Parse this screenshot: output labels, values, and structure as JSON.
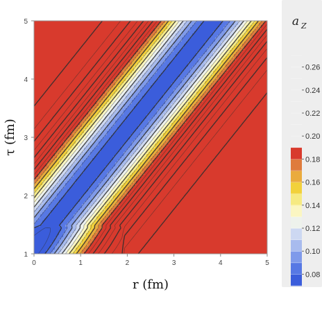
{
  "chart_data": {
    "type": "heatmap",
    "subtype": "filled-contour",
    "xlabel": "r (fm)",
    "ylabel": "τ (fm)",
    "xlim": [
      0,
      5
    ],
    "ylim": [
      1,
      5
    ],
    "xticks": [
      "0",
      "1",
      "2",
      "3",
      "4",
      "5"
    ],
    "yticks": [
      "1",
      "2",
      "3",
      "4",
      "5"
    ],
    "colorbar": {
      "title_main": "a",
      "title_sub": "Z",
      "levels": [
        0.07,
        0.08,
        0.09,
        0.1,
        0.11,
        0.12,
        0.13,
        0.14,
        0.15,
        0.16,
        0.17,
        0.18,
        0.19,
        0.2,
        0.21,
        0.22,
        0.23,
        0.24,
        0.25,
        0.26,
        0.27
      ],
      "tick_labels": [
        "0.08",
        "0.10",
        "0.12",
        "0.14",
        "0.16",
        "0.18",
        "0.20",
        "0.22",
        "0.24",
        "0.26"
      ],
      "tick_values": [
        0.08,
        0.1,
        0.12,
        0.14,
        0.16,
        0.18,
        0.2,
        0.22,
        0.24,
        0.26
      ],
      "colors": [
        "#3b5ddb",
        "#5778e4",
        "#7f9aea",
        "#a8bbee",
        "#cdd8f2",
        "#eef2ec",
        "#fbf6c2",
        "#f6ea82",
        "#f2d13b",
        "#eaab3d",
        "#df7b3c",
        "#d83a2d"
      ]
    },
    "contour_lines": {
      "solid": "#2e2e2e",
      "dashed": "#2e2e2e"
    }
  }
}
